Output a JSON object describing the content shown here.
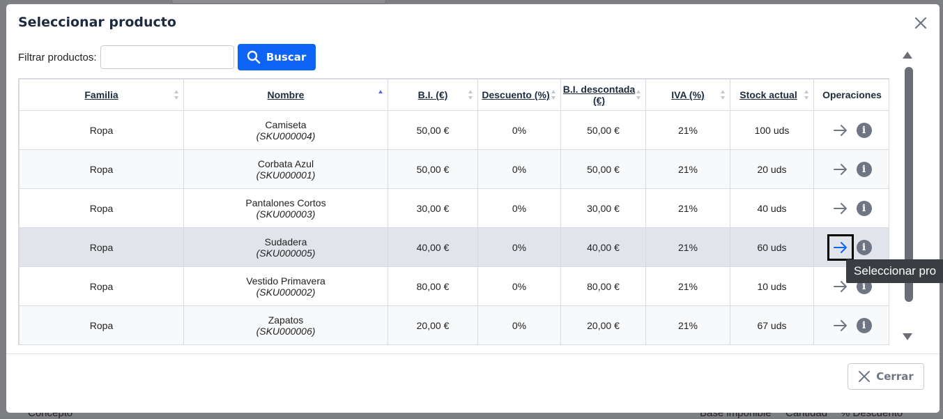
{
  "background": {
    "footer_labels": [
      "Concepto",
      "Base imponible",
      "Cantidad",
      "% Descuento"
    ]
  },
  "modal": {
    "title": "Seleccionar producto",
    "close_icon": "close-icon",
    "filter": {
      "label": "Filtrar productos:",
      "value": "",
      "placeholder": ""
    },
    "search_button": {
      "label": "Buscar",
      "icon": "search-icon"
    },
    "footer": {
      "close_label": "Cerrar",
      "close_icon": "close-icon"
    },
    "tooltip": "Seleccionar pro"
  },
  "table": {
    "columns": [
      {
        "label": "Familia",
        "sortable": true,
        "sort": "none"
      },
      {
        "label": "Nombre",
        "sortable": true,
        "sort": "asc"
      },
      {
        "label": "B.I. (€)",
        "sortable": true,
        "sort": "none"
      },
      {
        "label": "Descuento (%)",
        "sortable": true,
        "sort": "none"
      },
      {
        "label": "B.I. descontada (€)",
        "sortable": true,
        "sort": "none"
      },
      {
        "label": "IVA (%)",
        "sortable": true,
        "sort": "none"
      },
      {
        "label": "Stock actual",
        "sortable": true,
        "sort": "none"
      },
      {
        "label": "Operaciones",
        "sortable": false,
        "sort": "none"
      }
    ],
    "rows": [
      {
        "familia": "Ropa",
        "nombre": "Camiseta",
        "sku": "(SKU000004)",
        "bi": "50,00 €",
        "descuento": "0%",
        "bi_descontada": "50,00 €",
        "iva": "21%",
        "stock": "100 uds"
      },
      {
        "familia": "Ropa",
        "nombre": "Corbata Azul",
        "sku": "(SKU000001)",
        "bi": "50,00 €",
        "descuento": "0%",
        "bi_descontada": "50,00 €",
        "iva": "21%",
        "stock": "20 uds"
      },
      {
        "familia": "Ropa",
        "nombre": "Pantalones Cortos",
        "sku": "(SKU000003)",
        "bi": "30,00 €",
        "descuento": "0%",
        "bi_descontada": "30,00 €",
        "iva": "21%",
        "stock": "40 uds"
      },
      {
        "familia": "Ropa",
        "nombre": "Sudadera",
        "sku": "(SKU000005)",
        "bi": "40,00 €",
        "descuento": "0%",
        "bi_descontada": "40,00 €",
        "iva": "21%",
        "stock": "60 uds"
      },
      {
        "familia": "Ropa",
        "nombre": "Vestido Primavera",
        "sku": "(SKU000002)",
        "bi": "80,00 €",
        "descuento": "0%",
        "bi_descontada": "80,00 €",
        "iva": "21%",
        "stock": "10 uds"
      },
      {
        "familia": "Ropa",
        "nombre": "Zapatos",
        "sku": "(SKU000006)",
        "bi": "20,00 €",
        "descuento": "0%",
        "bi_descontada": "20,00 €",
        "iva": "21%",
        "stock": "67 uds"
      }
    ],
    "highlighted_row": 3,
    "operation_icons": [
      "arrow-right-icon",
      "info-icon"
    ],
    "info_glyph": "i"
  },
  "colors": {
    "primary": "#0d63f5",
    "title": "#1d2b3f",
    "selected_row": "#e1e5eb",
    "icon_gray": "#6e7684",
    "tooltip_bg": "#3a3d42"
  }
}
